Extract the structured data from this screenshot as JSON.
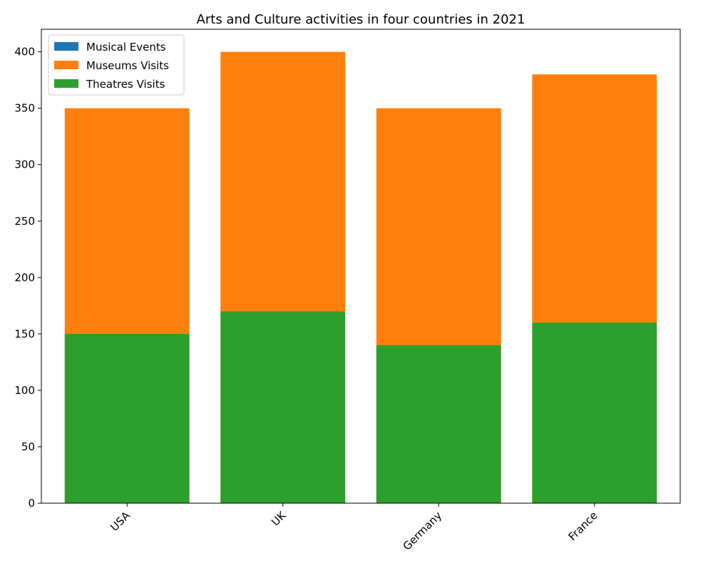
{
  "chart_data": {
    "type": "bar",
    "stacked": false,
    "title": "Arts and Culture activities in four countries in 2021",
    "categories": [
      "USA",
      "UK",
      "Germany",
      "France"
    ],
    "series": [
      {
        "name": "Musical Events",
        "color": "#1f77b4",
        "values": [
          0,
          0,
          0,
          0
        ]
      },
      {
        "name": "Museums Visits",
        "color": "#ff7f0e",
        "values": [
          350,
          400,
          350,
          380
        ]
      },
      {
        "name": "Theatres Visits",
        "color": "#2ca02c",
        "values": [
          150,
          170,
          140,
          160
        ]
      }
    ],
    "ylim": [
      0,
      420
    ],
    "yticks": [
      0,
      50,
      100,
      150,
      200,
      250,
      300,
      350,
      400
    ],
    "grid": false,
    "legend": "upper-left"
  }
}
